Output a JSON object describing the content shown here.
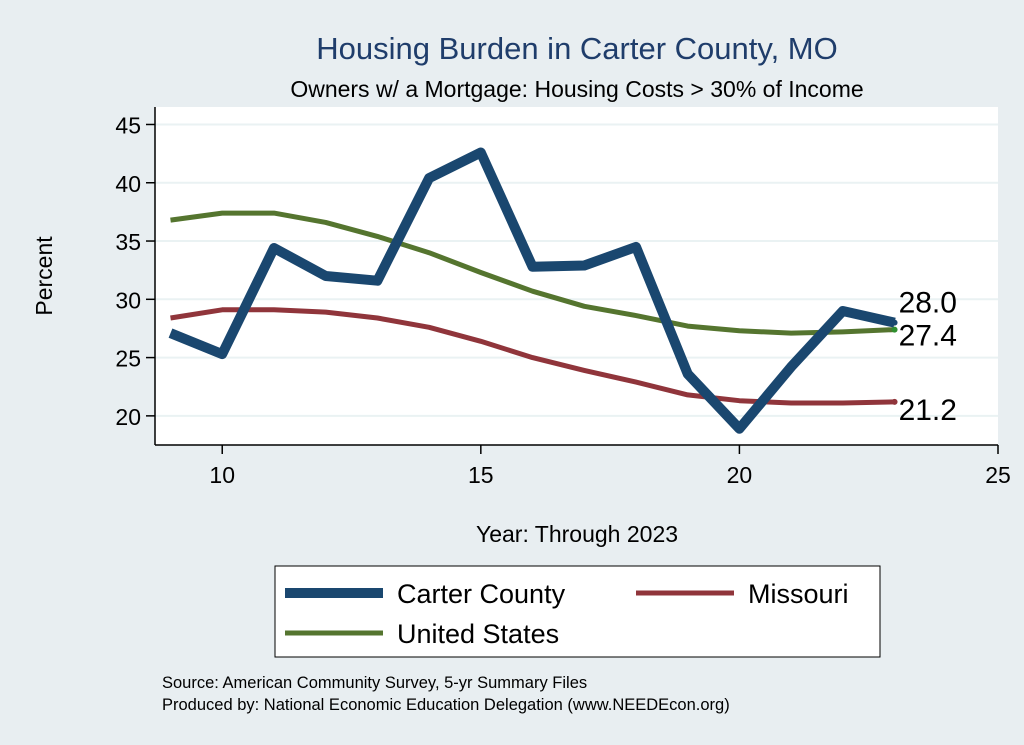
{
  "chart_data": {
    "type": "line",
    "title": "Housing Burden in Carter County, MO",
    "subtitle": "Owners w/ a Mortgage: Housing Costs > 30% of Income",
    "xlabel": "Year: Through 2023",
    "ylabel": "Percent",
    "xlim": [
      8.7,
      25
    ],
    "ylim": [
      17.5,
      46.5
    ],
    "xticks": [
      10,
      15,
      20,
      25
    ],
    "yticks": [
      20,
      25,
      30,
      35,
      40,
      45
    ],
    "x": [
      9,
      10,
      11,
      12,
      13,
      14,
      15,
      16,
      17,
      18,
      19,
      20,
      21,
      22,
      23
    ],
    "series": [
      {
        "name": "Carter County",
        "color": "#1a476f",
        "values": [
          27.1,
          25.3,
          34.4,
          32.0,
          31.6,
          40.4,
          42.6,
          32.8,
          32.9,
          34.5,
          23.6,
          18.9,
          24.2,
          29.0,
          28.0
        ],
        "end_label": "28.0"
      },
      {
        "name": "Missouri",
        "color": "#90353b",
        "values": [
          28.4,
          29.1,
          29.1,
          28.9,
          28.4,
          27.6,
          26.4,
          25.0,
          23.9,
          22.9,
          21.8,
          21.3,
          21.1,
          21.1,
          21.2
        ],
        "end_label": "21.2"
      },
      {
        "name": "United States",
        "color": "#55752f",
        "values": [
          36.8,
          37.4,
          37.4,
          36.6,
          35.4,
          34.0,
          32.3,
          30.7,
          29.4,
          28.6,
          27.7,
          27.3,
          27.1,
          27.2,
          27.4
        ],
        "end_label": "27.4"
      }
    ],
    "legend": [
      "Carter County",
      "Missouri",
      "United States"
    ]
  },
  "notes": {
    "source": "Source: American Community Survey, 5-yr Summary Files",
    "produced": "Produced by: National Economic Education Delegation (www.NEEDEcon.org)"
  },
  "colors": {
    "background": "#e8eef1",
    "plot_background": "#ffffff",
    "title": "#1f3d6b",
    "grid": "#eaf2f3"
  }
}
